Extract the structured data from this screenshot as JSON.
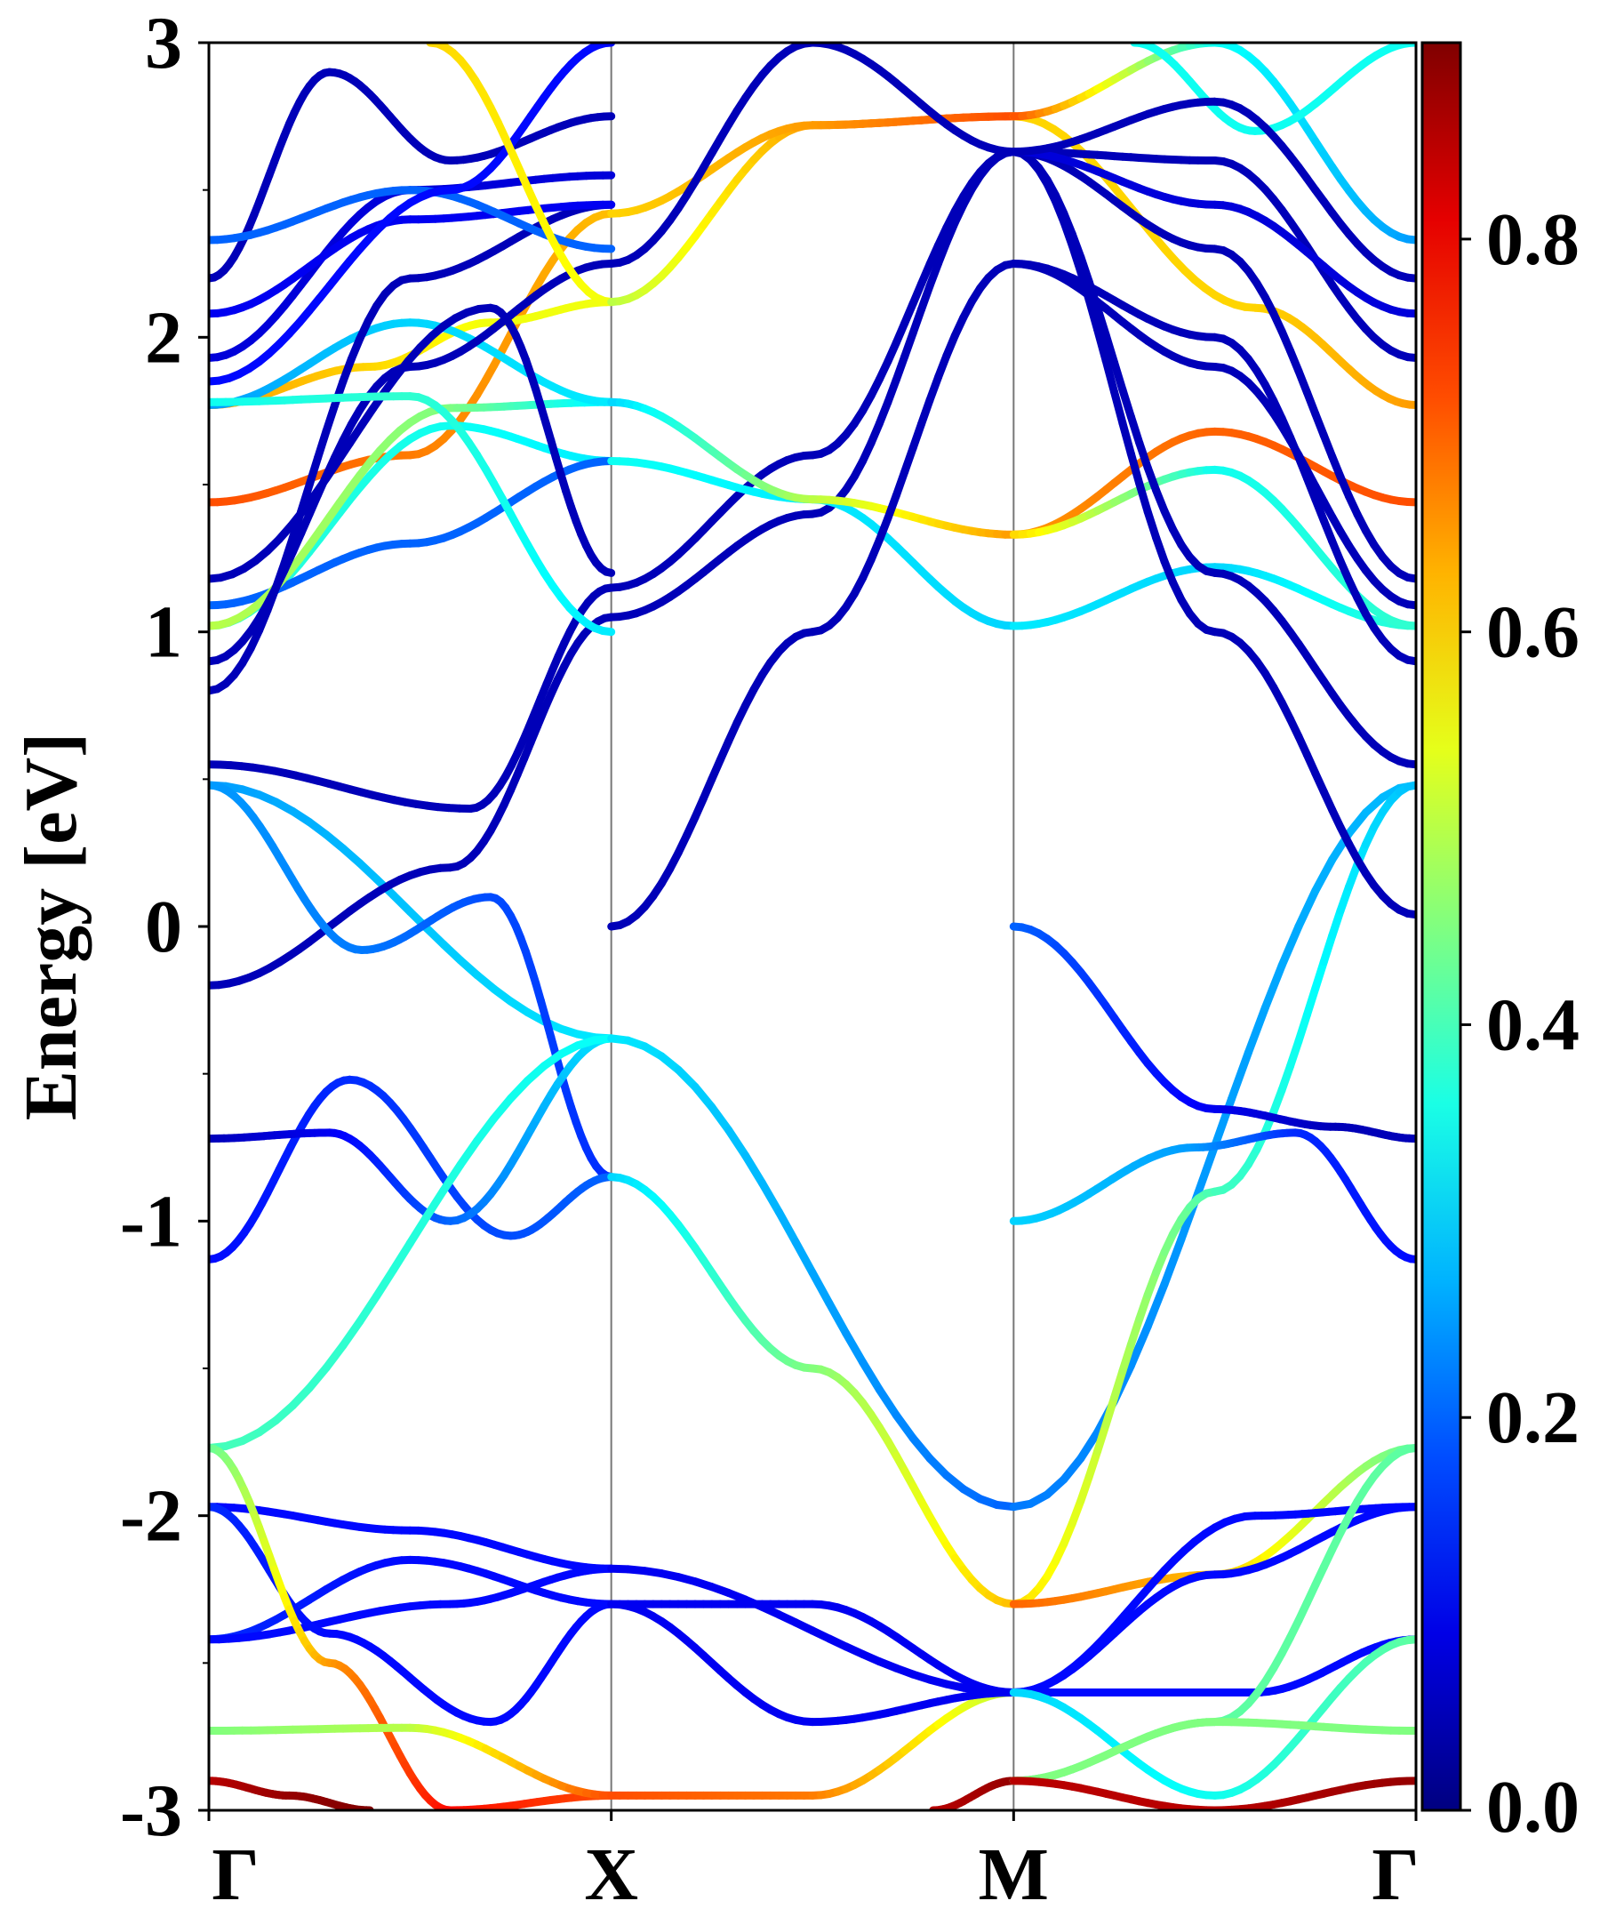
{
  "chart_data": {
    "type": "line",
    "title": "",
    "xlabel": "",
    "ylabel": "Energy [eV]",
    "ylim": [
      -3,
      3
    ],
    "yticks": [
      "3",
      "2",
      "1",
      "0",
      "-1",
      "-2",
      "-3"
    ],
    "kpoints": [
      "Γ",
      "X",
      "M",
      "Γ"
    ],
    "grid": false,
    "colormap": "jet",
    "colorbar": {
      "range": [
        0.0,
        0.9
      ],
      "ticks": [
        "0.8",
        "0.6",
        "0.4",
        "0.2",
        "0.0"
      ]
    },
    "series": [
      {
        "x": [
          0,
          1
        ],
        "y": [
          0.48,
          -0.38
        ],
        "c": [
          0.25,
          0.32
        ]
      },
      {
        "x": [
          0,
          0.6,
          1
        ],
        "y": [
          -0.2,
          0.2,
          1.05
        ],
        "c": [
          0.05,
          0.05,
          0.05
        ]
      },
      {
        "x": [
          0,
          0.65,
          1
        ],
        "y": [
          0.55,
          0.4,
          1.15
        ],
        "c": [
          0.05,
          0.05,
          0.05
        ]
      },
      {
        "x": [
          0,
          0.38,
          0.7,
          1
        ],
        "y": [
          0.48,
          -0.08,
          0.1,
          -0.85
        ],
        "c": [
          0.25,
          0.22,
          0.18,
          0.15
        ]
      },
      {
        "x": [
          0,
          0.35,
          0.75,
          1
        ],
        "y": [
          -1.13,
          -0.52,
          -1.05,
          -0.85
        ],
        "c": [
          0.12,
          0.15,
          0.18,
          0.2
        ]
      },
      {
        "x": [
          0,
          0.3,
          0.6,
          1
        ],
        "y": [
          -0.72,
          -0.7,
          -1.0,
          -0.38
        ],
        "c": [
          0.05,
          0.1,
          0.2,
          0.32
        ]
      },
      {
        "x": [
          0,
          1
        ],
        "y": [
          -1.77,
          -0.38
        ],
        "c": [
          0.4,
          0.34
        ]
      },
      {
        "x": [
          0,
          0.5,
          1
        ],
        "y": [
          -1.97,
          -2.05,
          -2.18
        ],
        "c": [
          0.12,
          0.12,
          0.12
        ]
      },
      {
        "x": [
          0,
          0.5,
          1
        ],
        "y": [
          -2.42,
          -2.15,
          -2.3
        ],
        "c": [
          0.15,
          0.12,
          0.12
        ]
      },
      {
        "x": [
          0,
          0.6,
          1
        ],
        "y": [
          -2.42,
          -2.3,
          -2.18
        ],
        "c": [
          0.12,
          0.12,
          0.12
        ]
      },
      {
        "x": [
          0,
          0.3,
          0.7,
          1
        ],
        "y": [
          -1.97,
          -2.4,
          -2.7,
          -2.3
        ],
        "c": [
          0.15,
          0.12,
          0.12,
          0.12
        ]
      },
      {
        "x": [
          0,
          0.3,
          0.6,
          1
        ],
        "y": [
          -1.77,
          -2.5,
          -3.0,
          -2.95
        ],
        "c": [
          0.42,
          0.65,
          0.78,
          0.72
        ]
      },
      {
        "x": [
          0,
          0.5,
          1
        ],
        "y": [
          -2.73,
          -2.72,
          -2.95
        ],
        "c": [
          0.45,
          0.5,
          0.72
        ]
      },
      {
        "x": [
          0,
          0.5,
          1
        ],
        "y": [
          1.44,
          1.6,
          2.42
        ],
        "c": [
          0.72,
          0.68,
          0.62
        ]
      },
      {
        "x": [
          0,
          0.4,
          0.7,
          1
        ],
        "y": [
          1.77,
          1.9,
          2.05,
          2.12
        ],
        "c": [
          0.65,
          0.6,
          0.55,
          0.55
        ]
      },
      {
        "x": [
          0,
          0.6,
          1
        ],
        "y": [
          1.02,
          1.7,
          1.58
        ],
        "c": [
          0.38,
          0.35,
          0.32
        ]
      },
      {
        "x": [
          0,
          0.5,
          1
        ],
        "y": [
          1.09,
          1.3,
          1.58
        ],
        "c": [
          0.2,
          0.2,
          0.2
        ]
      },
      {
        "x": [
          0,
          0.6,
          1
        ],
        "y": [
          1.02,
          1.76,
          1.78
        ],
        "c": [
          0.5,
          0.45,
          0.32
        ]
      },
      {
        "x": [
          0,
          0.5,
          1
        ],
        "y": [
          1.77,
          2.05,
          1.78
        ],
        "c": [
          0.25,
          0.3,
          0.32
        ]
      },
      {
        "x": [
          0,
          0.7,
          1
        ],
        "y": [
          1.18,
          2.1,
          1.2
        ],
        "c": [
          0.05,
          0.05,
          0.05
        ]
      },
      {
        "x": [
          0,
          0.5,
          1
        ],
        "y": [
          0.9,
          1.9,
          2.25
        ],
        "c": [
          0.05,
          0.05,
          0.05
        ]
      },
      {
        "x": [
          0,
          0.5,
          1
        ],
        "y": [
          0.8,
          2.2,
          2.45
        ],
        "c": [
          0.05,
          0.05,
          0.05
        ]
      },
      {
        "x": [
          0,
          0.5,
          1
        ],
        "y": [
          1.93,
          2.5,
          2.55
        ],
        "c": [
          0.08,
          0.08,
          0.08
        ]
      },
      {
        "x": [
          0,
          0.5,
          1
        ],
        "y": [
          2.08,
          2.4,
          2.45
        ],
        "c": [
          0.1,
          0.1,
          0.1
        ]
      },
      {
        "x": [
          0,
          0.3,
          0.6,
          1
        ],
        "y": [
          2.2,
          2.9,
          2.6,
          2.75
        ],
        "c": [
          0.05,
          0.05,
          0.05,
          0.05
        ]
      },
      {
        "x": [
          0,
          0.5,
          1
        ],
        "y": [
          2.33,
          2.5,
          2.3
        ],
        "c": [
          0.2,
          0.2,
          0.2
        ]
      },
      {
        "x": [
          0,
          0.5,
          1
        ],
        "y": [
          1.78,
          1.8,
          1.0
        ],
        "c": [
          0.35,
          0.38,
          0.32
        ]
      },
      {
        "x": [
          0,
          0.6,
          1
        ],
        "y": [
          1.85,
          2.5,
          3.0
        ],
        "c": [
          0.12,
          0.12,
          0.12
        ]
      },
      {
        "x": [
          0.55,
          1
        ],
        "y": [
          3.0,
          2.12
        ],
        "c": [
          0.6,
          0.55
        ]
      },
      {
        "x": [
          1,
          2
        ],
        "y": [
          -0.38,
          -1.97
        ],
        "c": [
          0.32,
          0.2
        ]
      },
      {
        "x": [
          1,
          1.5,
          2
        ],
        "y": [
          -0.85,
          -1.5,
          -2.3
        ],
        "c": [
          0.3,
          0.45,
          0.62
        ]
      },
      {
        "x": [
          1,
          2
        ],
        "y": [
          -2.18,
          -2.6
        ],
        "c": [
          0.1,
          0.1
        ]
      },
      {
        "x": [
          1,
          1.5,
          2
        ],
        "y": [
          -2.3,
          -2.3,
          -2.6
        ],
        "c": [
          0.1,
          0.1,
          0.1
        ]
      },
      {
        "x": [
          1,
          1.5,
          2
        ],
        "y": [
          -2.95,
          -2.95,
          -2.6
        ],
        "c": [
          0.72,
          0.68,
          0.5
        ]
      },
      {
        "x": [
          1,
          1.5,
          2
        ],
        "y": [
          -2.3,
          -2.7,
          -2.6
        ],
        "c": [
          0.1,
          0.1,
          0.1
        ]
      },
      {
        "x": [
          1.8,
          2
        ],
        "y": [
          -3.0,
          -2.9
        ],
        "c": [
          0.85,
          0.88
        ]
      },
      {
        "x": [
          1,
          1.5,
          2
        ],
        "y": [
          1.05,
          1.4,
          2.63
        ],
        "c": [
          0.05,
          0.05,
          0.05
        ]
      },
      {
        "x": [
          1,
          1.5,
          2
        ],
        "y": [
          1.15,
          1.6,
          2.63
        ],
        "c": [
          0.05,
          0.05,
          0.05
        ]
      },
      {
        "x": [
          1,
          1.5,
          2
        ],
        "y": [
          1.58,
          1.45,
          1.02
        ],
        "c": [
          0.35,
          0.32,
          0.3
        ]
      },
      {
        "x": [
          1,
          1.5,
          2
        ],
        "y": [
          1.78,
          1.45,
          1.33
        ],
        "c": [
          0.3,
          0.5,
          0.65
        ]
      },
      {
        "x": [
          1,
          1.5,
          2
        ],
        "y": [
          2.12,
          2.72,
          2.75
        ],
        "c": [
          0.5,
          0.65,
          0.72
        ]
      },
      {
        "x": [
          1,
          1.5,
          2
        ],
        "y": [
          2.42,
          2.72,
          2.75
        ],
        "c": [
          0.6,
          0.65,
          0.72
        ]
      },
      {
        "x": [
          1,
          1.5,
          2
        ],
        "y": [
          0.0,
          1.0,
          2.25
        ],
        "c": [
          0.05,
          0.05,
          0.05
        ]
      },
      {
        "x": [
          1,
          1.5,
          2
        ],
        "y": [
          2.25,
          3.0,
          2.63
        ],
        "c": [
          0.05,
          0.05,
          0.05
        ]
      },
      {
        "x": [
          2,
          3
        ],
        "y": [
          -1.97,
          0.48
        ],
        "c": [
          0.22,
          0.28
        ]
      },
      {
        "x": [
          2,
          2.5,
          3
        ],
        "y": [
          -2.3,
          -0.9,
          0.48
        ],
        "c": [
          0.6,
          0.4,
          0.28
        ]
      },
      {
        "x": [
          2,
          2.5,
          2.8,
          3
        ],
        "y": [
          0.0,
          -0.62,
          -0.68,
          -0.72
        ],
        "c": [
          0.2,
          0.1,
          0.05,
          0.05
        ]
      },
      {
        "x": [
          2,
          2.45,
          2.7,
          3
        ],
        "y": [
          -1.0,
          -0.75,
          -0.7,
          -1.13
        ],
        "c": [
          0.3,
          0.25,
          0.15,
          0.12
        ]
      },
      {
        "x": [
          2,
          2.5,
          3
        ],
        "y": [
          -2.3,
          -2.2,
          -1.77
        ],
        "c": [
          0.7,
          0.62,
          0.42
        ]
      },
      {
        "x": [
          2,
          2.6,
          3
        ],
        "y": [
          -2.6,
          -2.0,
          -1.97
        ],
        "c": [
          0.12,
          0.12,
          0.12
        ]
      },
      {
        "x": [
          2,
          2.5,
          3
        ],
        "y": [
          -2.6,
          -2.2,
          -1.97
        ],
        "c": [
          0.12,
          0.12,
          0.12
        ]
      },
      {
        "x": [
          2,
          2.6,
          3
        ],
        "y": [
          -2.6,
          -2.6,
          -2.42
        ],
        "c": [
          0.12,
          0.12,
          0.12
        ]
      },
      {
        "x": [
          2,
          2.5,
          3
        ],
        "y": [
          -2.6,
          -2.95,
          -2.42
        ],
        "c": [
          0.3,
          0.35,
          0.42
        ]
      },
      {
        "x": [
          2,
          2.5,
          3
        ],
        "y": [
          -2.9,
          -2.7,
          -1.77
        ],
        "c": [
          0.4,
          0.42,
          0.42
        ]
      },
      {
        "x": [
          2,
          2.5,
          3
        ],
        "y": [
          -2.9,
          -2.7,
          -2.73
        ],
        "c": [
          0.45,
          0.45,
          0.45
        ]
      },
      {
        "x": [
          2,
          2.5,
          3
        ],
        "y": [
          -2.9,
          -3.0,
          -2.9
        ],
        "c": [
          0.85,
          0.85,
          0.88
        ]
      },
      {
        "x": [
          2,
          2.5,
          3
        ],
        "y": [
          1.02,
          1.22,
          1.02
        ],
        "c": [
          0.32,
          0.3,
          0.38
        ]
      },
      {
        "x": [
          2,
          2.5,
          3
        ],
        "y": [
          1.33,
          1.68,
          1.44
        ],
        "c": [
          0.65,
          0.7,
          0.72
        ]
      },
      {
        "x": [
          2,
          2.5,
          3
        ],
        "y": [
          1.33,
          1.55,
          1.02
        ],
        "c": [
          0.6,
          0.35,
          0.38
        ]
      },
      {
        "x": [
          2,
          2.6,
          3
        ],
        "y": [
          2.75,
          2.1,
          1.77
        ],
        "c": [
          0.6,
          0.6,
          0.65
        ]
      },
      {
        "x": [
          2,
          2.5,
          3
        ],
        "y": [
          2.63,
          1.2,
          0.55
        ],
        "c": [
          0.05,
          0.05,
          0.05
        ]
      },
      {
        "x": [
          2,
          2.5,
          3
        ],
        "y": [
          2.63,
          1.0,
          0.04
        ],
        "c": [
          0.05,
          0.05,
          0.05
        ]
      },
      {
        "x": [
          2,
          2.5,
          3
        ],
        "y": [
          2.25,
          1.9,
          1.09
        ],
        "c": [
          0.05,
          0.05,
          0.05
        ]
      },
      {
        "x": [
          2,
          2.5,
          3
        ],
        "y": [
          2.25,
          2.0,
          0.9
        ],
        "c": [
          0.05,
          0.05,
          0.05
        ]
      },
      {
        "x": [
          2,
          2.5,
          3
        ],
        "y": [
          2.63,
          2.3,
          1.18
        ],
        "c": [
          0.05,
          0.05,
          0.05
        ]
      },
      {
        "x": [
          2,
          2.5,
          3
        ],
        "y": [
          2.75,
          3.0,
          2.33
        ],
        "c": [
          0.72,
          0.35,
          0.25
        ]
      },
      {
        "x": [
          2.3,
          2.6,
          3
        ],
        "y": [
          3.0,
          2.7,
          3.0
        ],
        "c": [
          0.35,
          0.35,
          0.35
        ]
      },
      {
        "x": [
          2,
          2.5,
          3
        ],
        "y": [
          2.63,
          2.6,
          1.93
        ],
        "c": [
          0.05,
          0.05,
          0.05
        ]
      },
      {
        "x": [
          2,
          2.5,
          3
        ],
        "y": [
          2.63,
          2.45,
          2.08
        ],
        "c": [
          0.08,
          0.08,
          0.08
        ]
      },
      {
        "x": [
          2,
          2.5,
          3
        ],
        "y": [
          2.63,
          2.8,
          2.2
        ],
        "c": [
          0.05,
          0.05,
          0.05
        ]
      },
      {
        "x": [
          0,
          0.2,
          0.4
        ],
        "y": [
          -2.9,
          -2.95,
          -3.0
        ],
        "c": [
          0.85,
          0.88,
          0.9
        ]
      }
    ]
  }
}
